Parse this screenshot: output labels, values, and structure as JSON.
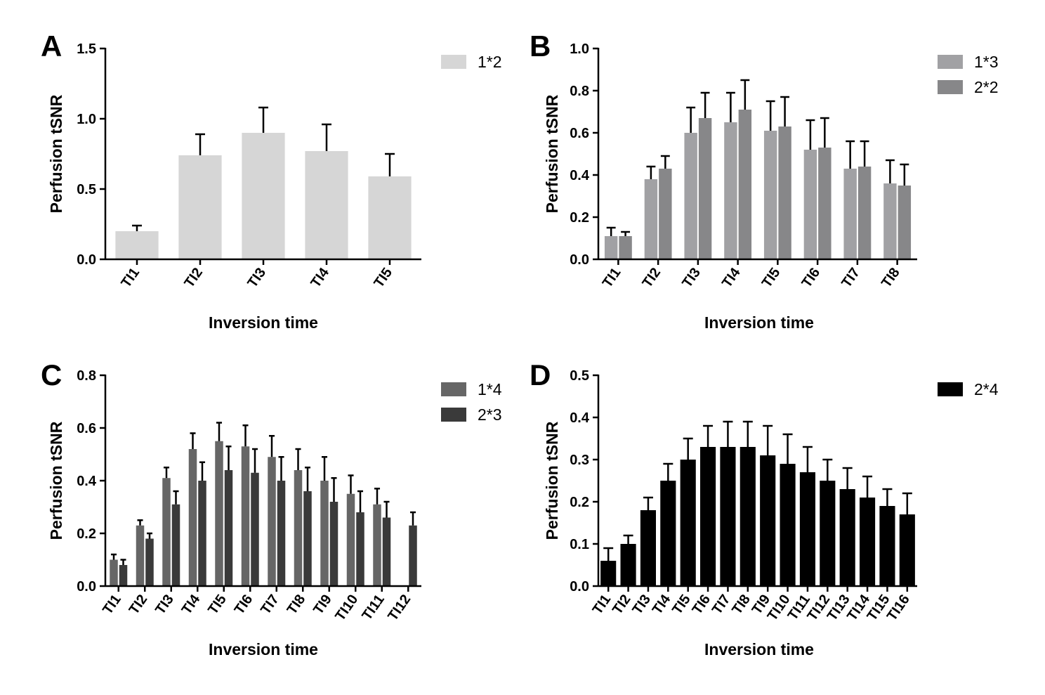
{
  "chart_data": [
    {
      "type": "bar",
      "panel": "A",
      "title": "",
      "xlabel": "Inversion time",
      "ylabel": "Perfusion tSNR",
      "ylim": [
        0,
        1.5
      ],
      "yticks": [
        "0.0",
        "0.5",
        "1.0",
        "1.5"
      ],
      "ytick_values": [
        0,
        0.5,
        1.0,
        1.5
      ],
      "categories": [
        "TI1",
        "TI2",
        "TI3",
        "TI4",
        "TI5"
      ],
      "legend_position": "top-right",
      "series": [
        {
          "name": "1*2",
          "color": "#d6d6d6",
          "values": [
            0.2,
            0.74,
            0.9,
            0.77,
            0.59
          ],
          "errors": [
            0.04,
            0.15,
            0.18,
            0.19,
            0.16
          ]
        }
      ]
    },
    {
      "type": "bar",
      "panel": "B",
      "title": "",
      "xlabel": "Inversion time",
      "ylabel": "Perfusion tSNR",
      "ylim": [
        0,
        1.0
      ],
      "yticks": [
        "0.0",
        "0.2",
        "0.4",
        "0.6",
        "0.8",
        "1.0"
      ],
      "ytick_values": [
        0,
        0.2,
        0.4,
        0.6,
        0.8,
        1.0
      ],
      "categories": [
        "TI1",
        "TI2",
        "TI3",
        "TI4",
        "TI5",
        "TI6",
        "TI7",
        "TI8"
      ],
      "legend_position": "top-right",
      "series": [
        {
          "name": "1*3",
          "color": "#a1a1a4",
          "values": [
            0.11,
            0.38,
            0.6,
            0.65,
            0.61,
            0.52,
            0.43,
            0.36
          ],
          "errors": [
            0.04,
            0.06,
            0.12,
            0.14,
            0.14,
            0.14,
            0.13,
            0.11
          ]
        },
        {
          "name": "2*2",
          "color": "#878789",
          "values": [
            0.11,
            0.43,
            0.67,
            0.71,
            0.63,
            0.53,
            0.44,
            0.35
          ],
          "errors": [
            0.02,
            0.06,
            0.12,
            0.14,
            0.14,
            0.14,
            0.12,
            0.1
          ]
        }
      ]
    },
    {
      "type": "bar",
      "panel": "C",
      "title": "",
      "xlabel": "Inversion time",
      "ylabel": "Perfusion tSNR",
      "ylim": [
        0,
        0.8
      ],
      "yticks": [
        "0.0",
        "0.2",
        "0.4",
        "0.6",
        "0.8"
      ],
      "ytick_values": [
        0,
        0.2,
        0.4,
        0.6,
        0.8
      ],
      "categories": [
        "TI1",
        "TI2",
        "TI3",
        "TI4",
        "TI5",
        "TI6",
        "TI7",
        "TI8",
        "TI9",
        "TI10",
        "TI11",
        "TI12"
      ],
      "legend_position": "top-right",
      "series": [
        {
          "name": "1*4",
          "color": "#666666",
          "values": [
            0.1,
            0.23,
            0.41,
            0.52,
            0.55,
            0.53,
            0.49,
            0.44,
            0.4,
            0.35,
            0.31,
            null
          ],
          "errors": [
            0.02,
            0.02,
            0.04,
            0.06,
            0.07,
            0.08,
            0.08,
            0.08,
            0.09,
            0.07,
            0.06,
            null
          ]
        },
        {
          "name": "2*3",
          "color": "#3a3a3a",
          "values": [
            0.08,
            0.18,
            0.31,
            0.4,
            0.44,
            0.43,
            0.4,
            0.36,
            0.32,
            0.28,
            0.26,
            0.23
          ],
          "errors": [
            0.02,
            0.02,
            0.05,
            0.07,
            0.09,
            0.09,
            0.09,
            0.09,
            0.09,
            0.08,
            0.06,
            0.05
          ]
        }
      ]
    },
    {
      "type": "bar",
      "panel": "D",
      "title": "",
      "xlabel": "Inversion time",
      "ylabel": "Perfusion tSNR",
      "ylim": [
        0,
        0.5
      ],
      "yticks": [
        "0.0",
        "0.1",
        "0.2",
        "0.3",
        "0.4",
        "0.5"
      ],
      "ytick_values": [
        0,
        0.1,
        0.2,
        0.3,
        0.4,
        0.5
      ],
      "categories": [
        "TI1",
        "TI2",
        "TI3",
        "TI4",
        "TI5",
        "TI6",
        "TI7",
        "TI8",
        "TI9",
        "TI10",
        "TI11",
        "TI12",
        "TI13",
        "TI14",
        "TI15",
        "TI16"
      ],
      "legend_position": "top-right",
      "series": [
        {
          "name": "2*4",
          "color": "#000000",
          "values": [
            0.06,
            0.1,
            0.18,
            0.25,
            0.3,
            0.33,
            0.33,
            0.33,
            0.31,
            0.29,
            0.27,
            0.25,
            0.23,
            0.21,
            0.19,
            0.17
          ],
          "errors": [
            0.03,
            0.02,
            0.03,
            0.04,
            0.05,
            0.05,
            0.06,
            0.06,
            0.07,
            0.07,
            0.06,
            0.05,
            0.05,
            0.05,
            0.04,
            0.05
          ]
        }
      ]
    }
  ]
}
